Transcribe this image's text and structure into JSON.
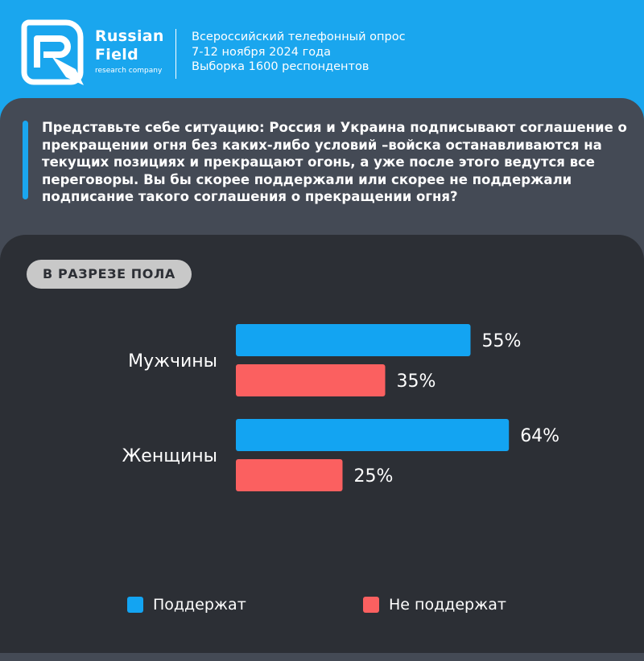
{
  "header": {
    "brand_line1": "Russian",
    "brand_line2": "Field",
    "brand_sub": "research company",
    "survey_line1": "Всероссийский телефонный опрос",
    "survey_line2": "7-12 ноября 2024 года",
    "survey_line3": "Выборка 1600 респондентов"
  },
  "question": "Представьте себе ситуацию: Россия и Украина подписывают соглашение о прекращении огня без каких-либо условий –войска останавливаются на текущих позициях и прекращают огонь, а уже после этого ведутся все переговоры. Вы бы скорее поддержали или скорее не поддержали подписание такого соглашения о прекращении огня?",
  "section_label": "В РАЗРЕЗЕ ПОЛА",
  "colors": {
    "support": "#13a4f2",
    "oppose": "#fb6060",
    "header_bg": "#1aa6ee",
    "panel_bg": "#444a55",
    "chart_bg": "#2c2f35"
  },
  "chart_data": {
    "type": "bar",
    "orientation": "horizontal",
    "categories": [
      "Мужчины",
      "Женщины"
    ],
    "series": [
      {
        "name": "Поддержат",
        "values": [
          55,
          64
        ],
        "labels": [
          "55%",
          "64%"
        ]
      },
      {
        "name": "Не поддержат",
        "values": [
          35,
          25
        ],
        "labels": [
          "35%",
          "25%"
        ]
      }
    ],
    "unit": "%",
    "xlim": [
      0,
      100
    ],
    "grid": false,
    "legend_position": "bottom"
  },
  "legend": {
    "support_label": "Поддержат",
    "oppose_label": "Не поддержат"
  }
}
